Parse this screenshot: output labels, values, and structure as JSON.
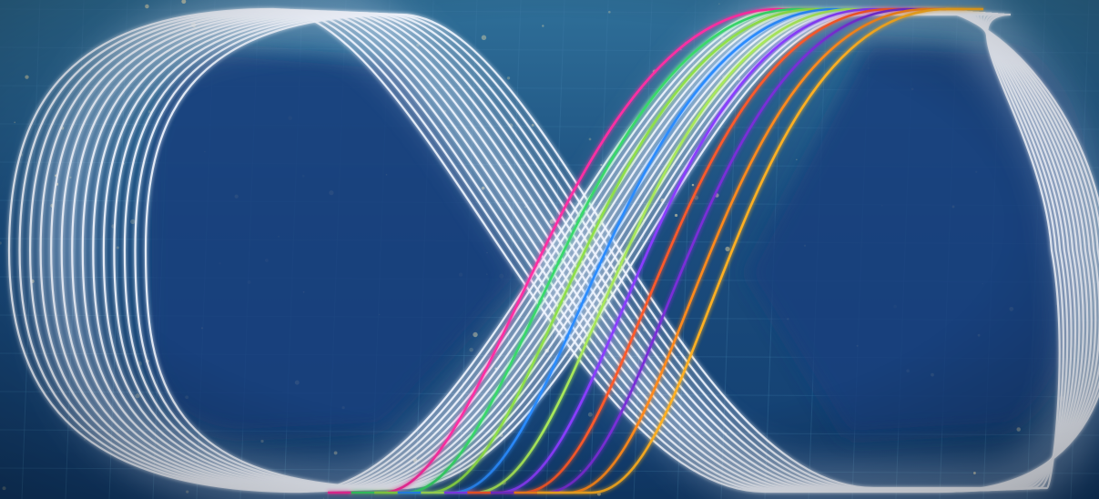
{
  "scene": {
    "colors": {
      "background_top": "#2f6f98",
      "background_mid": "#1b4d7e",
      "background_bottom": "#123d6f",
      "grid_line": "#3d7aa6",
      "loop_interior": "#1a3f7c",
      "white_strand": "#f2f6ff",
      "glow": "#dbe8ff"
    },
    "white_strand_count": 14,
    "colored_strands": [
      {
        "name": "magenta",
        "color": "#ff2fa3"
      },
      {
        "name": "green",
        "color": "#37d96a"
      },
      {
        "name": "lime",
        "color": "#8fe04a"
      },
      {
        "name": "blue",
        "color": "#2a8cff"
      },
      {
        "name": "light-green",
        "color": "#a8e85a"
      },
      {
        "name": "purple",
        "color": "#8a3dff"
      },
      {
        "name": "orange-red",
        "color": "#ff5a2a"
      },
      {
        "name": "violet",
        "color": "#7a2fd8"
      },
      {
        "name": "orange",
        "color": "#ff8a1c"
      },
      {
        "name": "amber",
        "color": "#ffb020"
      }
    ]
  }
}
